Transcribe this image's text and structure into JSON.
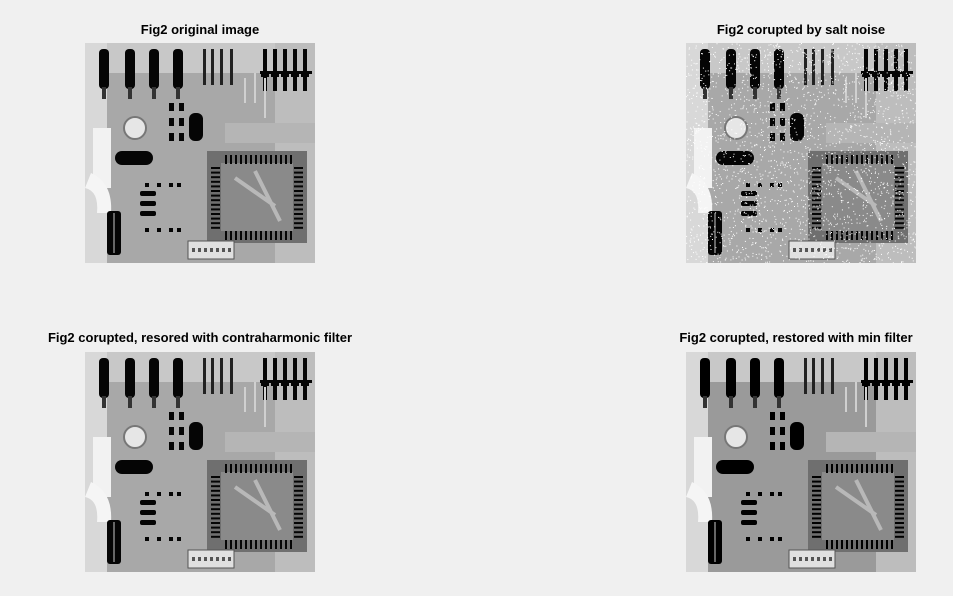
{
  "figure": {
    "panels": [
      {
        "id": "p1",
        "title": "Fig2 original image",
        "variant": "original"
      },
      {
        "id": "p2",
        "title": "Fig2 corupted by salt noise",
        "variant": "salt"
      },
      {
        "id": "p3",
        "title": "Fig2 corupted, resored with contraharmonic filter",
        "variant": "original"
      },
      {
        "id": "p4",
        "title": "Fig2 corupted, restored with min filter",
        "variant": "min"
      }
    ]
  }
}
